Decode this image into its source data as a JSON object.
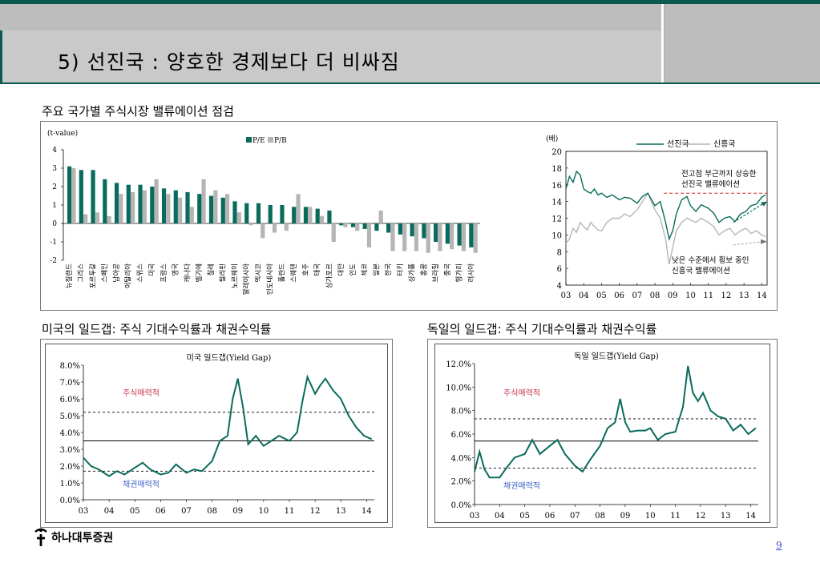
{
  "title": "5) 선진국 : 양호한 경제보다 더 비싸짐",
  "sections": {
    "valuation": "주요 국가별 주식시장 밸류에이션 점검",
    "us": "미국의 일드갭: 주식 기대수익률과 채권수익률",
    "de": "독일의 일드갭: 주식 기대수익률과 채권수익률"
  },
  "colors": {
    "accent": "#0a6b5c",
    "gray": "#b5b5b5",
    "header": "#c9c9c9",
    "red_dash": "#d02020"
  },
  "brand": "하나대투증권",
  "page": "9",
  "chart_data": [
    {
      "type": "bar",
      "ylabel": "(t-value)",
      "ylim": [
        -2,
        4
      ],
      "yticks": [
        "4",
        "3",
        "2",
        "1",
        "0",
        "-1",
        "-2"
      ],
      "legend_position": "top",
      "categories": [
        "뉴질랜드",
        "그리스",
        "포르투갈",
        "스페인",
        "남아공",
        "이탈리아",
        "스위스",
        "미국",
        "프랑스",
        "영국",
        "캐나다",
        "벨기에",
        "칠레",
        "필리핀",
        "노르웨이",
        "말레이시아",
        "멕시코",
        "인도네시아",
        "폴란드",
        "스웨덴",
        "호주",
        "태국",
        "싱가포르",
        "대만",
        "인도",
        "체코",
        "일본",
        "한국",
        "터키",
        "싱가폴",
        "홍콩",
        "브라질",
        "중국",
        "헝가리",
        "러시아"
      ],
      "series": [
        {
          "name": "P/E",
          "values": [
            3.1,
            2.9,
            2.9,
            2.4,
            2.2,
            2.1,
            2.1,
            2.0,
            1.9,
            1.8,
            1.7,
            1.6,
            1.5,
            1.4,
            1.2,
            1.1,
            1.1,
            1.0,
            1.0,
            0.9,
            0.9,
            0.8,
            0.7,
            -0.1,
            -0.2,
            -0.3,
            -0.4,
            -0.5,
            -0.6,
            -0.7,
            -0.8,
            -1.0,
            -1.1,
            -1.2,
            -1.3
          ]
        },
        {
          "name": "P/B",
          "values": [
            3.0,
            0.5,
            0.6,
            0.4,
            1.6,
            1.7,
            1.8,
            2.4,
            1.6,
            1.4,
            0.9,
            2.4,
            1.8,
            1.6,
            0.6,
            -0.1,
            -0.8,
            -0.5,
            -0.4,
            1.6,
            0.9,
            0.4,
            -1.0,
            -0.2,
            -0.4,
            -1.3,
            0.7,
            -1.5,
            -1.5,
            -1.5,
            -1.6,
            -1.5,
            -1.4,
            -1.5,
            -1.6
          ]
        }
      ]
    },
    {
      "type": "line",
      "ylabel": "(배)",
      "ylim": [
        4,
        20
      ],
      "yticks": [
        "20",
        "18",
        "16",
        "14",
        "12",
        "10",
        "8",
        "6",
        "4"
      ],
      "x_ticks": [
        "03",
        "04",
        "05",
        "06",
        "07",
        "08",
        "09",
        "10",
        "11",
        "12",
        "13",
        "14"
      ],
      "x_range": [
        2003,
        2014.3
      ],
      "legend_position": "top-right",
      "series": [
        {
          "name": "선진국",
          "x": [
            2003.0,
            2003.2,
            2003.4,
            2003.6,
            2003.8,
            2004.0,
            2004.2,
            2004.4,
            2004.6,
            2004.8,
            2005.0,
            2005.3,
            2005.6,
            2006.0,
            2006.3,
            2006.6,
            2007.0,
            2007.3,
            2007.6,
            2008.0,
            2008.3,
            2008.6,
            2008.8,
            2009.0,
            2009.2,
            2009.5,
            2009.8,
            2010.0,
            2010.3,
            2010.6,
            2011.0,
            2011.3,
            2011.6,
            2011.9,
            2012.2,
            2012.5,
            2012.8,
            2013.1,
            2013.4,
            2013.7,
            2014.0,
            2014.2
          ],
          "y": [
            15.5,
            17.0,
            16.3,
            17.6,
            17.2,
            15.5,
            15.2,
            15.0,
            15.5,
            14.8,
            15.0,
            14.5,
            14.8,
            14.2,
            14.5,
            14.4,
            13.8,
            14.6,
            15.0,
            13.5,
            14.0,
            11.5,
            9.5,
            10.5,
            12.5,
            14.2,
            14.6,
            13.5,
            12.8,
            13.6,
            13.2,
            12.6,
            11.5,
            12.0,
            12.2,
            11.6,
            12.5,
            12.8,
            13.5,
            13.7,
            14.5,
            14.8
          ]
        },
        {
          "name": "신흥국",
          "x": [
            2003.0,
            2003.2,
            2003.4,
            2003.6,
            2003.8,
            2004.0,
            2004.2,
            2004.4,
            2004.6,
            2004.8,
            2005.0,
            2005.3,
            2005.6,
            2006.0,
            2006.3,
            2006.6,
            2007.0,
            2007.3,
            2007.6,
            2008.0,
            2008.3,
            2008.6,
            2008.8,
            2009.0,
            2009.2,
            2009.5,
            2009.8,
            2010.0,
            2010.3,
            2010.6,
            2011.0,
            2011.3,
            2011.6,
            2011.9,
            2012.2,
            2012.5,
            2012.8,
            2013.1,
            2013.4,
            2013.7,
            2014.0,
            2014.2
          ],
          "y": [
            9.0,
            9.5,
            10.8,
            10.3,
            11.5,
            11.0,
            10.6,
            11.5,
            11.0,
            10.6,
            10.5,
            11.5,
            12.0,
            12.0,
            12.5,
            12.2,
            13.0,
            14.0,
            15.0,
            13.0,
            12.0,
            9.5,
            6.5,
            8.5,
            10.5,
            11.5,
            12.0,
            11.8,
            11.5,
            12.0,
            11.5,
            11.0,
            10.0,
            10.5,
            10.8,
            10.0,
            10.5,
            10.8,
            10.2,
            10.5,
            10.0,
            9.8
          ]
        }
      ],
      "annotations": [
        "전고점 부근까지 상승한 선진국 밸류에이션",
        "낮은 수준에서 횡보 중인 신흥국 밸류에이션"
      ],
      "reference_line": 15.0
    },
    {
      "type": "line",
      "title": "미국 일드갭(Yield Gap)",
      "ylim": [
        0,
        8
      ],
      "yticks": [
        "8.0%",
        "7.0%",
        "6.0%",
        "5.0%",
        "4.0%",
        "3.0%",
        "2.0%",
        "1.0%",
        "0.0%"
      ],
      "x_ticks": [
        "03",
        "04",
        "05",
        "06",
        "07",
        "08",
        "09",
        "10",
        "11",
        "12",
        "13",
        "14"
      ],
      "x_range": [
        2003,
        2014.3
      ],
      "mean": 3.5,
      "upper": 5.2,
      "lower": 1.7,
      "labels": {
        "upper": "주식매력적",
        "lower": "채권매력적"
      },
      "series": [
        {
          "name": "",
          "x": [
            2003.0,
            2003.3,
            2003.6,
            2004.0,
            2004.3,
            2004.6,
            2005.0,
            2005.3,
            2005.6,
            2006.0,
            2006.3,
            2006.6,
            2007.0,
            2007.3,
            2007.6,
            2008.0,
            2008.3,
            2008.6,
            2008.8,
            2009.0,
            2009.2,
            2009.4,
            2009.7,
            2010.0,
            2010.3,
            2010.6,
            2011.0,
            2011.3,
            2011.5,
            2011.7,
            2012.0,
            2012.2,
            2012.4,
            2012.7,
            2013.0,
            2013.3,
            2013.6,
            2013.9,
            2014.2
          ],
          "y": [
            2.5,
            2.0,
            1.8,
            1.4,
            1.7,
            1.5,
            1.9,
            2.2,
            1.8,
            1.5,
            1.6,
            2.1,
            1.6,
            1.8,
            1.7,
            2.3,
            3.5,
            3.8,
            6.0,
            7.2,
            5.5,
            3.3,
            3.8,
            3.2,
            3.5,
            3.8,
            3.5,
            4.0,
            5.8,
            7.3,
            6.3,
            6.8,
            7.2,
            6.5,
            6.0,
            5.0,
            4.3,
            3.8,
            3.6
          ]
        }
      ]
    },
    {
      "type": "line",
      "title": "독일 일드갭(Yield Gap)",
      "ylim": [
        0,
        12
      ],
      "yticks": [
        "12.0%",
        "10.0%",
        "8.0%",
        "6.0%",
        "4.0%",
        "2.0%",
        "0.0%"
      ],
      "x_ticks": [
        "03",
        "04",
        "05",
        "06",
        "07",
        "08",
        "09",
        "10",
        "11",
        "12",
        "13",
        "14"
      ],
      "x_range": [
        2003,
        2014.3
      ],
      "mean": 5.4,
      "upper": 7.3,
      "lower": 3.1,
      "labels": {
        "upper": "주식매력적",
        "lower": "채권매력적"
      },
      "series": [
        {
          "name": "",
          "x": [
            2003.0,
            2003.2,
            2003.4,
            2003.6,
            2004.0,
            2004.3,
            2004.6,
            2005.0,
            2005.3,
            2005.6,
            2006.0,
            2006.3,
            2006.6,
            2007.0,
            2007.3,
            2007.6,
            2008.0,
            2008.3,
            2008.6,
            2008.8,
            2009.0,
            2009.2,
            2009.5,
            2009.8,
            2010.0,
            2010.3,
            2010.6,
            2011.0,
            2011.3,
            2011.5,
            2011.7,
            2011.9,
            2012.1,
            2012.4,
            2012.7,
            2013.0,
            2013.3,
            2013.6,
            2013.9,
            2014.2
          ],
          "y": [
            2.8,
            4.5,
            3.0,
            2.3,
            2.3,
            3.2,
            4.0,
            4.3,
            5.5,
            4.3,
            5.0,
            5.5,
            4.3,
            3.3,
            2.8,
            3.8,
            5.0,
            6.5,
            7.0,
            9.0,
            7.0,
            6.2,
            6.3,
            6.3,
            6.5,
            5.5,
            6.0,
            6.2,
            8.3,
            11.8,
            9.5,
            8.8,
            9.5,
            8.0,
            7.5,
            7.3,
            6.3,
            6.8,
            6.0,
            6.5
          ]
        }
      ]
    }
  ]
}
